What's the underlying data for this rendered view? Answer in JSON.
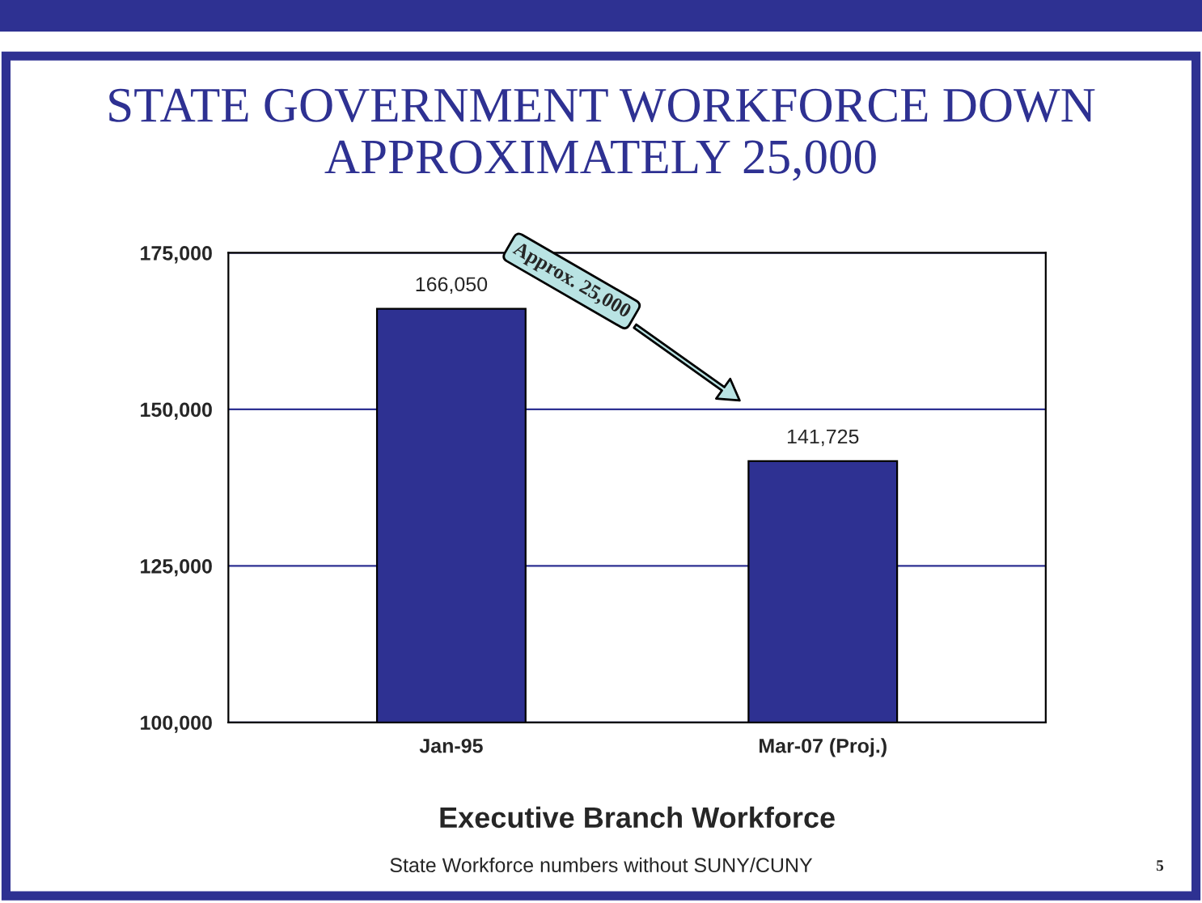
{
  "chart_data": {
    "type": "bar",
    "title": "STATE GOVERNMENT WORKFORCE DOWN APPROXIMATELY 25,000",
    "xlabel": "Executive Branch Workforce",
    "categories": [
      "Jan-95",
      "Mar-07 (Proj.)"
    ],
    "values": [
      166050,
      141725
    ],
    "color": "#2e3192",
    "ylim": [
      100000,
      175000
    ],
    "yticks": [
      {
        "value": 100000,
        "label": "100,000"
      },
      {
        "value": 125000,
        "label": "125,000"
      },
      {
        "value": 150000,
        "label": "150,000"
      },
      {
        "value": 175000,
        "label": "175,000"
      }
    ],
    "value_labels": [
      "166,050",
      "141,725"
    ],
    "grid": "y",
    "annotations": [
      "Approx. 25,000",
      "State Workforce numbers without SUNY/CUNY",
      "5"
    ]
  }
}
